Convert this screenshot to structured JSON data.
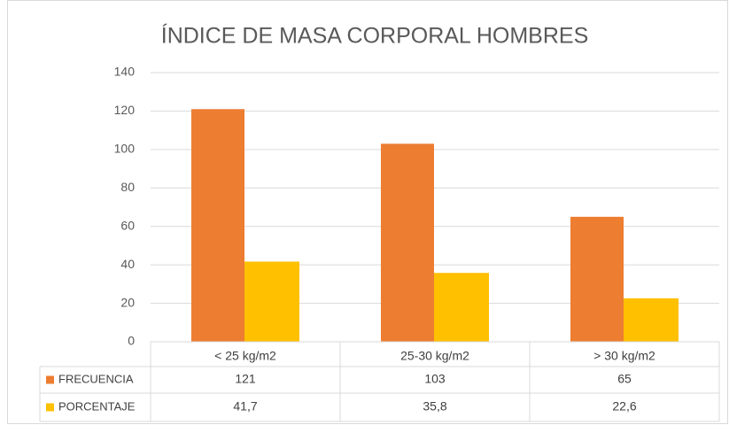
{
  "chart_data": {
    "type": "bar",
    "title": "ÍNDICE DE MASA CORPORAL HOMBRES",
    "categories": [
      "< 25 kg/m2",
      "25-30 kg/m2",
      "> 30 kg/m2"
    ],
    "series": [
      {
        "name": "FRECUENCIA",
        "color": "#ed7d31",
        "values": [
          121,
          103,
          65
        ]
      },
      {
        "name": "PORCENTAJE",
        "color": "#ffc000",
        "values": [
          41.7,
          35.8,
          22.6
        ],
        "value_labels": [
          "41,7",
          "35,8",
          "22,6"
        ]
      }
    ],
    "ylim": [
      0,
      140
    ],
    "yticks": [
      0,
      20,
      40,
      60,
      80,
      100,
      120,
      140
    ],
    "grid": true
  }
}
